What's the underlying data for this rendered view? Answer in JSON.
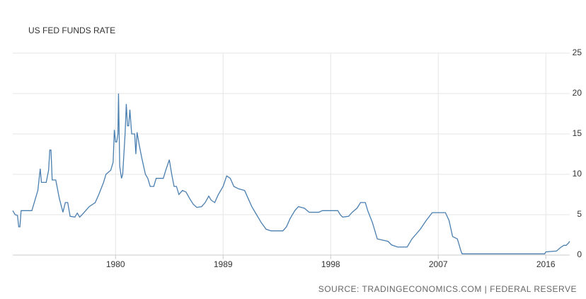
{
  "chart_data": {
    "type": "line",
    "title": "US FED FUNDS RATE",
    "source": "SOURCE: TRADINGECONOMICS.COM | FEDERAL RESERVE",
    "xlim": [
      1971.4,
      2018.0
    ],
    "xticks": [
      1980,
      1989,
      1998,
      2007,
      2016
    ],
    "ylim": [
      0,
      25
    ],
    "yticks": [
      0,
      5,
      10,
      15,
      20,
      25
    ],
    "grid": true,
    "x": [
      1971.4,
      1971.6,
      1971.8,
      1971.9,
      1972.0,
      1972.1,
      1972.5,
      1973.0,
      1973.3,
      1973.5,
      1973.7,
      1973.8,
      1974.2,
      1974.4,
      1974.5,
      1974.6,
      1974.7,
      1975.0,
      1975.3,
      1975.6,
      1975.8,
      1976.0,
      1976.2,
      1976.6,
      1976.8,
      1977.0,
      1977.2,
      1977.5,
      1977.8,
      1978.3,
      1978.6,
      1979.0,
      1979.2,
      1979.6,
      1979.8,
      1979.9,
      1980.0,
      1980.1,
      1980.2,
      1980.25,
      1980.35,
      1980.5,
      1980.6,
      1980.8,
      1980.9,
      1981.0,
      1981.1,
      1981.2,
      1981.35,
      1981.6,
      1981.7,
      1981.8,
      1982.0,
      1982.2,
      1982.5,
      1982.7,
      1982.9,
      1983.2,
      1983.4,
      1983.8,
      1984.0,
      1984.2,
      1984.5,
      1984.7,
      1984.9,
      1985.1,
      1985.3,
      1985.6,
      1985.9,
      1986.2,
      1986.5,
      1986.8,
      1987.2,
      1987.5,
      1987.8,
      1988.0,
      1988.3,
      1988.6,
      1989.0,
      1989.3,
      1989.6,
      1989.9,
      1990.3,
      1990.8,
      1991.1,
      1991.4,
      1991.8,
      1992.2,
      1992.6,
      1993.0,
      1993.5,
      1994.0,
      1994.3,
      1994.6,
      1995.0,
      1995.3,
      1995.8,
      1996.2,
      1997.0,
      1997.3,
      1998.6,
      1998.8,
      1999.0,
      1999.5,
      1999.8,
      2000.2,
      2000.5,
      2000.9,
      2001.1,
      2001.5,
      2001.9,
      2002.8,
      2003.1,
      2003.6,
      2004.4,
      2004.8,
      2005.5,
      2006.0,
      2006.5,
      2007.6,
      2007.9,
      2008.2,
      2008.6,
      2008.9,
      2009.0,
      2015.9,
      2016.0,
      2016.9,
      2017.2,
      2017.5,
      2017.7,
      2017.9,
      2018.0
    ],
    "series": [
      {
        "color": "#4a7fb0",
        "values": [
          5.5,
          5.0,
          4.9,
          3.5,
          3.5,
          5.5,
          5.5,
          5.5,
          7.0,
          8.0,
          10.7,
          9.0,
          9.0,
          10.5,
          13.0,
          13.0,
          9.3,
          9.3,
          7.0,
          5.3,
          6.5,
          6.5,
          4.8,
          4.7,
          5.2,
          4.7,
          5.0,
          5.5,
          6.0,
          6.5,
          7.5,
          9.0,
          10.0,
          10.5,
          11.5,
          15.5,
          14.0,
          14.0,
          15.0,
          20.0,
          11.0,
          9.5,
          10.0,
          15.0,
          18.7,
          16.0,
          16.0,
          18.0,
          15.0,
          15.0,
          12.5,
          15.2,
          13.5,
          12.0,
          10.0,
          9.5,
          8.5,
          8.5,
          9.5,
          9.5,
          9.5,
          10.5,
          11.8,
          10.0,
          8.5,
          8.5,
          7.5,
          8.0,
          7.8,
          7.0,
          6.3,
          5.9,
          6.0,
          6.5,
          7.3,
          6.8,
          6.5,
          7.5,
          8.5,
          9.8,
          9.5,
          8.5,
          8.2,
          8.0,
          7.0,
          6.0,
          5.0,
          4.0,
          3.2,
          3.0,
          3.0,
          3.0,
          3.5,
          4.5,
          5.5,
          6.0,
          5.8,
          5.3,
          5.3,
          5.5,
          5.5,
          5.0,
          4.7,
          4.8,
          5.3,
          5.8,
          6.5,
          6.5,
          5.5,
          4.0,
          2.0,
          1.7,
          1.25,
          1.0,
          1.0,
          2.0,
          3.2,
          4.3,
          5.25,
          5.25,
          4.3,
          2.3,
          2.0,
          0.5,
          0.15,
          0.15,
          0.4,
          0.5,
          0.9,
          1.2,
          1.2,
          1.5,
          1.7
        ]
      }
    ]
  }
}
